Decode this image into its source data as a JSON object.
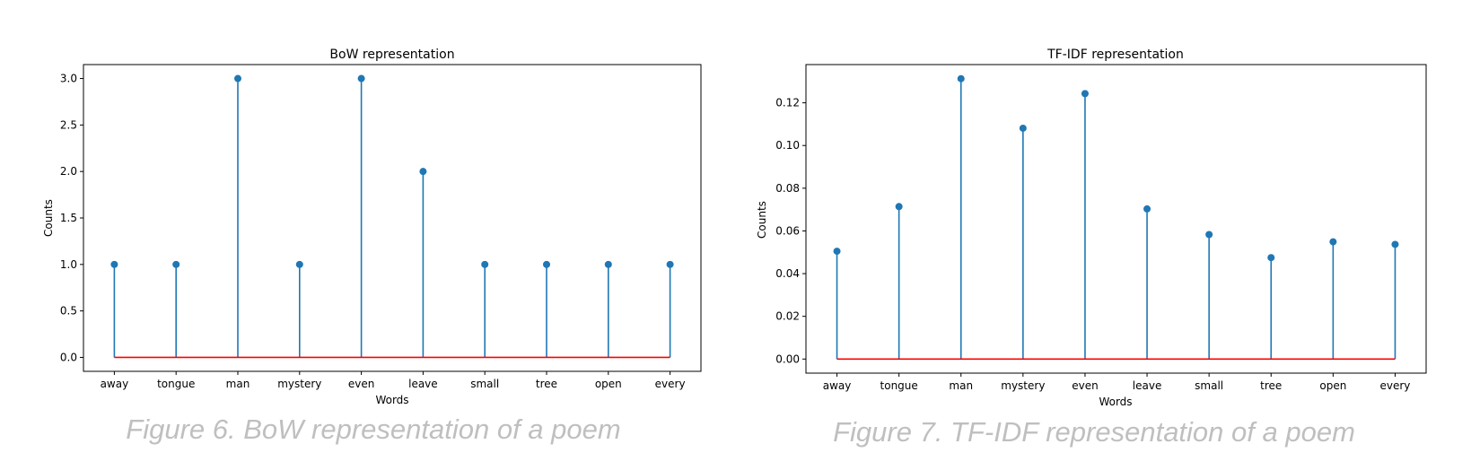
{
  "chart_data": [
    {
      "type": "stem",
      "title": "BoW representation",
      "xlabel": "Words",
      "ylabel": "Counts",
      "categories": [
        "away",
        "tongue",
        "man",
        "mystery",
        "even",
        "leave",
        "small",
        "tree",
        "open",
        "every"
      ],
      "values": [
        1,
        1,
        3,
        1,
        3,
        2,
        1,
        1,
        1,
        1
      ],
      "ylim": [
        -0.15,
        3.15
      ],
      "yticks": [
        "0.0",
        "0.5",
        "1.0",
        "1.5",
        "2.0",
        "2.5",
        "3.0"
      ],
      "stem_color": "#1f77b4",
      "baseline_color": "#ff0000",
      "grid": false,
      "caption": "Figure 6. BoW representation of a poem"
    },
    {
      "type": "stem",
      "title": "TF-IDF representation",
      "xlabel": "Words",
      "ylabel": "Counts",
      "categories": [
        "away",
        "tongue",
        "man",
        "mystery",
        "even",
        "leave",
        "small",
        "tree",
        "open",
        "every"
      ],
      "values": [
        0.0505,
        0.0714,
        0.1313,
        0.1081,
        0.1243,
        0.0703,
        0.0583,
        0.0475,
        0.0549,
        0.0537
      ],
      "ylim": [
        -0.0066,
        0.1379
      ],
      "yticks": [
        "0.00",
        "0.02",
        "0.04",
        "0.06",
        "0.08",
        "0.10",
        "0.12"
      ],
      "stem_color": "#1f77b4",
      "baseline_color": "#ff0000",
      "grid": false,
      "caption": "Figure 7. TF-IDF representation of a poem"
    }
  ]
}
